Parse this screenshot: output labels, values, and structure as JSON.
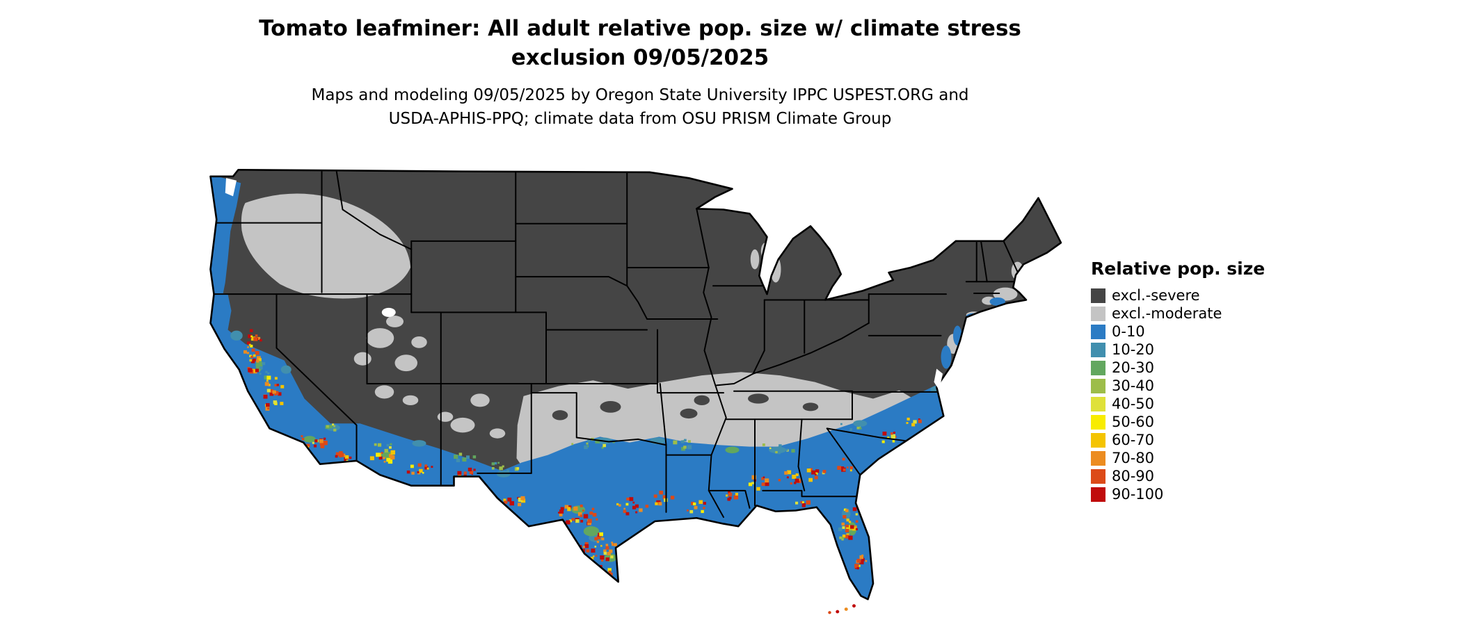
{
  "title": {
    "line1": "Tomato leafminer: All adult relative pop. size w/ climate stress",
    "line2": "exclusion 09/05/2025"
  },
  "subtitle": {
    "line1": "Maps and modeling 09/05/2025 by Oregon State University IPPC USPEST.ORG and",
    "line2": "USDA-APHIS-PPQ; climate data from OSU PRISM Climate Group"
  },
  "legend": {
    "title": "Relative pop. size",
    "items": [
      {
        "label": "excl.-severe",
        "color": "#454545"
      },
      {
        "label": "excl.-moderate",
        "color": "#c4c4c4"
      },
      {
        "label": "0-10",
        "color": "#2b7bc4"
      },
      {
        "label": "10-20",
        "color": "#418fae"
      },
      {
        "label": "20-30",
        "color": "#62a75f"
      },
      {
        "label": "30-40",
        "color": "#9dbd4a"
      },
      {
        "label": "40-50",
        "color": "#dfe139"
      },
      {
        "label": "50-60",
        "color": "#f8ec00"
      },
      {
        "label": "60-70",
        "color": "#f4c400"
      },
      {
        "label": "70-80",
        "color": "#ec8c20"
      },
      {
        "label": "80-90",
        "color": "#dc4a18"
      },
      {
        "label": "90-100",
        "color": "#c00c0c"
      }
    ]
  }
}
